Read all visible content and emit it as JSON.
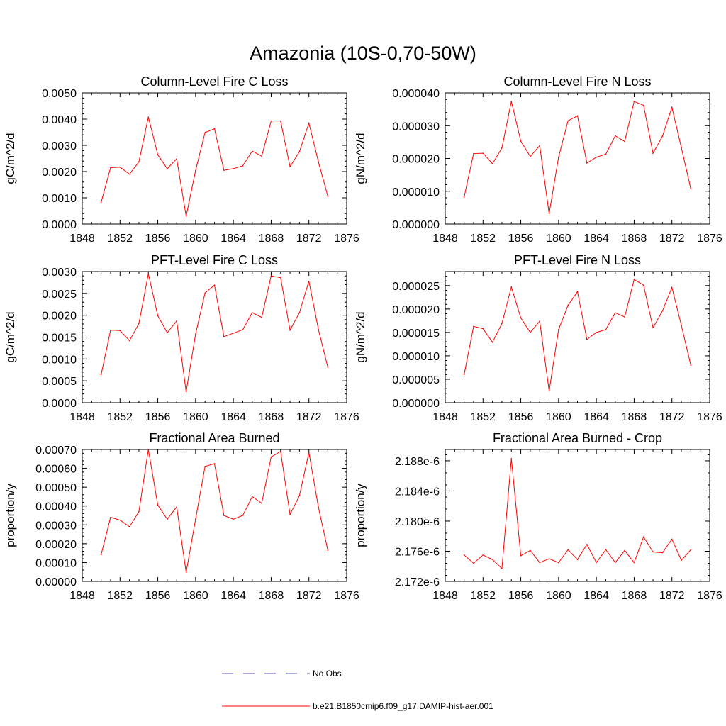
{
  "figure": {
    "title": "Amazonia (10S-0,70-50W)"
  },
  "legend": {
    "entries": [
      {
        "label": "No Obs",
        "color": "#5555bb",
        "style": "dashed"
      },
      {
        "label": "b.e21.B1850cmip6.f09_g17.DAMIP-hist-aer.001",
        "color": "#ff0000",
        "style": "solid"
      }
    ]
  },
  "colors": {
    "series": "#ff0000",
    "axis": "#000000",
    "obs": "#5555bb"
  },
  "chart_data": [
    {
      "type": "line",
      "title": "Column-Level Fire C Loss",
      "xlabel": "",
      "ylabel": "gC/m^2/d",
      "xlim": [
        1848,
        1876
      ],
      "ylim": [
        0,
        0.005
      ],
      "xticks": [
        "1848",
        "1852",
        "1856",
        "1860",
        "1864",
        "1868",
        "1872",
        "1876"
      ],
      "yticks": [
        0,
        0.001,
        0.002,
        0.003,
        0.004,
        0.005
      ],
      "ytick_labels": [
        "0.0000",
        "0.0010",
        "0.0020",
        "0.0030",
        "0.0040",
        "0.0050"
      ],
      "x": [
        1850,
        1851,
        1852,
        1853,
        1854,
        1855,
        1856,
        1857,
        1858,
        1859,
        1860,
        1861,
        1862,
        1863,
        1864,
        1865,
        1866,
        1867,
        1868,
        1869,
        1870,
        1871,
        1872,
        1873,
        1874
      ],
      "series": [
        {
          "name": "b.e21.B1850cmip6.f09_g17.DAMIP-hist-aer.001",
          "values": [
            0.00083,
            0.00215,
            0.00217,
            0.0019,
            0.00237,
            0.00408,
            0.00264,
            0.00211,
            0.00249,
            0.0003,
            0.00204,
            0.00349,
            0.00363,
            0.00205,
            0.00211,
            0.00222,
            0.00278,
            0.00259,
            0.00393,
            0.00393,
            0.00219,
            0.00276,
            0.00385,
            0.00238,
            0.00106
          ]
        }
      ]
    },
    {
      "type": "line",
      "title": "Column-Level Fire N Loss",
      "xlabel": "",
      "ylabel": "gN/m^2/d",
      "xlim": [
        1848,
        1876
      ],
      "ylim": [
        0,
        4e-05
      ],
      "xticks": [
        "1848",
        "1852",
        "1856",
        "1860",
        "1864",
        "1868",
        "1872",
        "1876"
      ],
      "yticks": [
        0,
        1e-05,
        2e-05,
        3e-05,
        4e-05
      ],
      "ytick_labels": [
        "0.000000",
        "0.000010",
        "0.000020",
        "0.000030",
        "0.000040"
      ],
      "x": [
        1850,
        1851,
        1852,
        1853,
        1854,
        1855,
        1856,
        1857,
        1858,
        1859,
        1860,
        1861,
        1862,
        1863,
        1864,
        1865,
        1866,
        1867,
        1868,
        1869,
        1870,
        1871,
        1872,
        1873,
        1874
      ],
      "series": [
        {
          "name": "b.e21.B1850cmip6.f09_g17.DAMIP-hist-aer.001",
          "values": [
            8.2e-06,
            2.15e-05,
            2.16e-05,
            1.84e-05,
            2.32e-05,
            3.74e-05,
            2.53e-05,
            2.06e-05,
            2.39e-05,
            3.2e-06,
            2.04e-05,
            3.15e-05,
            3.3e-05,
            1.86e-05,
            2.04e-05,
            2.13e-05,
            2.69e-05,
            2.52e-05,
            3.74e-05,
            3.62e-05,
            2.16e-05,
            2.68e-05,
            3.56e-05,
            2.33e-05,
            1.07e-05
          ]
        }
      ]
    },
    {
      "type": "line",
      "title": "PFT-Level Fire C Loss",
      "xlabel": "",
      "ylabel": "gC/m^2/d",
      "xlim": [
        1848,
        1876
      ],
      "ylim": [
        0,
        0.003
      ],
      "xticks": [
        "1848",
        "1852",
        "1856",
        "1860",
        "1864",
        "1868",
        "1872",
        "1876"
      ],
      "yticks": [
        0,
        0.0005,
        0.001,
        0.0015,
        0.002,
        0.0025,
        0.003
      ],
      "ytick_labels": [
        "0.0000",
        "0.0005",
        "0.0010",
        "0.0015",
        "0.0020",
        "0.0025",
        "0.0030"
      ],
      "x": [
        1850,
        1851,
        1852,
        1853,
        1854,
        1855,
        1856,
        1857,
        1858,
        1859,
        1860,
        1861,
        1862,
        1863,
        1864,
        1865,
        1866,
        1867,
        1868,
        1869,
        1870,
        1871,
        1872,
        1873,
        1874
      ],
      "series": [
        {
          "name": "b.e21.B1850cmip6.f09_g17.DAMIP-hist-aer.001",
          "values": [
            0.00064,
            0.00166,
            0.00165,
            0.00142,
            0.00181,
            0.00295,
            0.00199,
            0.0016,
            0.00187,
            0.00025,
            0.00157,
            0.00251,
            0.00269,
            0.00151,
            0.00159,
            0.00167,
            0.00206,
            0.00195,
            0.0029,
            0.00286,
            0.00166,
            0.00206,
            0.00278,
            0.00168,
            0.00081
          ]
        }
      ]
    },
    {
      "type": "line",
      "title": "PFT-Level Fire N Loss",
      "xlabel": "",
      "ylabel": "gN/m^2/d",
      "xlim": [
        1848,
        1876
      ],
      "ylim": [
        0,
        2.8e-05
      ],
      "xticks": [
        "1848",
        "1852",
        "1856",
        "1860",
        "1864",
        "1868",
        "1872",
        "1876"
      ],
      "yticks": [
        0,
        5e-06,
        1e-05,
        1.5e-05,
        2e-05,
        2.5e-05
      ],
      "ytick_labels": [
        "0.000000",
        "0.000005",
        "0.000010",
        "0.000015",
        "0.000020",
        "0.000025"
      ],
      "x": [
        1850,
        1851,
        1852,
        1853,
        1854,
        1855,
        1856,
        1857,
        1858,
        1859,
        1860,
        1861,
        1862,
        1863,
        1864,
        1865,
        1866,
        1867,
        1868,
        1869,
        1870,
        1871,
        1872,
        1873,
        1874
      ],
      "series": [
        {
          "name": "b.e21.B1850cmip6.f09_g17.DAMIP-hist-aer.001",
          "values": [
            6e-06,
            1.63e-05,
            1.58e-05,
            1.29e-05,
            1.69e-05,
            2.47e-05,
            1.81e-05,
            1.5e-05,
            1.74e-05,
            2.5e-06,
            1.56e-05,
            2.08e-05,
            2.37e-05,
            1.35e-05,
            1.5e-05,
            1.56e-05,
            1.92e-05,
            1.83e-05,
            2.63e-05,
            2.51e-05,
            1.6e-05,
            1.96e-05,
            2.46e-05,
            1.65e-05,
            8e-06
          ]
        }
      ]
    },
    {
      "type": "line",
      "title": "Fractional Area Burned",
      "xlabel": "",
      "ylabel": "proportion/y",
      "xlim": [
        1848,
        1876
      ],
      "ylim": [
        0,
        0.0007
      ],
      "xticks": [
        "1848",
        "1852",
        "1856",
        "1860",
        "1864",
        "1868",
        "1872",
        "1876"
      ],
      "yticks": [
        0,
        0.0001,
        0.0002,
        0.0003,
        0.0004,
        0.0005,
        0.0006,
        0.0007
      ],
      "ytick_labels": [
        "0.00000",
        "0.00010",
        "0.00020",
        "0.00030",
        "0.00040",
        "0.00050",
        "0.00060",
        "0.00070"
      ],
      "x": [
        1850,
        1851,
        1852,
        1853,
        1854,
        1855,
        1856,
        1857,
        1858,
        1859,
        1860,
        1861,
        1862,
        1863,
        1864,
        1865,
        1866,
        1867,
        1868,
        1869,
        1870,
        1871,
        1872,
        1873,
        1874
      ],
      "series": [
        {
          "name": "b.e21.B1850cmip6.f09_g17.DAMIP-hist-aer.001",
          "values": [
            0.000142,
            0.00034,
            0.000325,
            0.00029,
            0.00037,
            0.0007,
            0.000405,
            0.00033,
            0.000395,
            4.8e-05,
            0.00033,
            0.00061,
            0.000625,
            0.00035,
            0.00033,
            0.00035,
            0.00045,
            0.000415,
            0.00066,
            0.00069,
            0.000355,
            0.000455,
            0.000685,
            0.000395,
            0.000165
          ]
        }
      ]
    },
    {
      "type": "line",
      "title": "Fractional Area Burned - Crop",
      "xlabel": "",
      "ylabel": "proportion/y",
      "xlim": [
        1848,
        1876
      ],
      "ylim": [
        2.172e-06,
        2.1895e-06
      ],
      "xticks": [
        "1848",
        "1852",
        "1856",
        "1860",
        "1864",
        "1868",
        "1872",
        "1876"
      ],
      "yticks": [
        2.172e-06,
        2.176e-06,
        2.18e-06,
        2.184e-06,
        2.188e-06
      ],
      "ytick_labels": [
        "2.172e-6",
        "2.176e-6",
        "2.180e-6",
        "2.184e-6",
        "2.188e-6"
      ],
      "x": [
        1850,
        1851,
        1852,
        1853,
        1854,
        1855,
        1856,
        1857,
        1858,
        1859,
        1860,
        1861,
        1862,
        1863,
        1864,
        1865,
        1866,
        1867,
        1868,
        1869,
        1870,
        1871,
        1872,
        1873,
        1874
      ],
      "series": [
        {
          "name": "b.e21.B1850cmip6.f09_g17.DAMIP-hist-aer.001",
          "values": [
            2.1755e-06,
            2.1744e-06,
            2.1755e-06,
            2.1749e-06,
            2.1737e-06,
            2.1883e-06,
            2.1754e-06,
            2.1761e-06,
            2.1745e-06,
            2.175e-06,
            2.1745e-06,
            2.1762e-06,
            2.1749e-06,
            2.1769e-06,
            2.1745e-06,
            2.1762e-06,
            2.1745e-06,
            2.1761e-06,
            2.1745e-06,
            2.1779e-06,
            2.1759e-06,
            2.1758e-06,
            2.1776e-06,
            2.1748e-06,
            2.1762e-06
          ]
        }
      ]
    }
  ]
}
